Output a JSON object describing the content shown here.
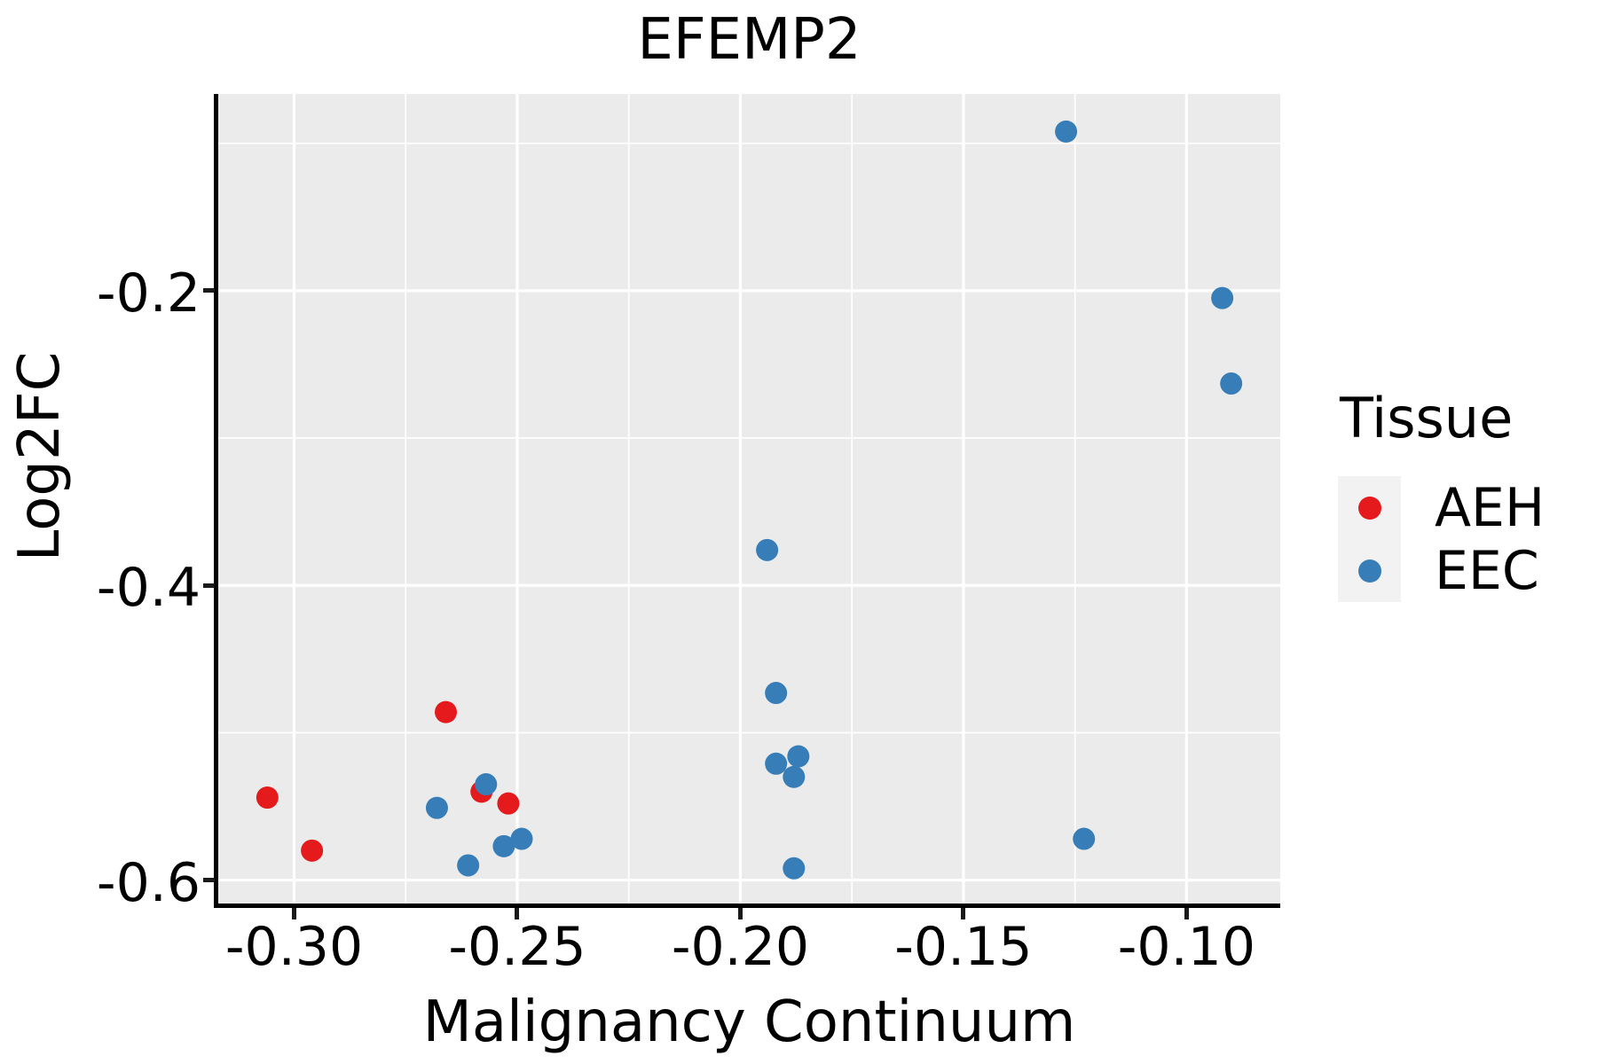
{
  "title": "EFEMP2",
  "legend": {
    "title": "Tissue",
    "entries": [
      {
        "label": "AEH",
        "color": "#E41A1C"
      },
      {
        "label": "EEC",
        "color": "#377EB8"
      }
    ]
  },
  "chart_data": {
    "type": "scatter",
    "title": "EFEMP2",
    "xlabel": "Malignancy Continuum",
    "ylabel": "Log2FC",
    "xlim": [
      -0.317,
      -0.079
    ],
    "ylim": [
      -0.6165,
      -0.0665
    ],
    "grid": true,
    "legend_position": "right",
    "x_ticks": {
      "values": [
        -0.3,
        -0.25,
        -0.2,
        -0.15,
        -0.1
      ],
      "labels": [
        "-0.30",
        "-0.25",
        "-0.20",
        "-0.15",
        "-0.10"
      ]
    },
    "y_ticks": {
      "values": [
        -0.2,
        -0.4,
        -0.6
      ],
      "labels": [
        "-0.2",
        "-0.4",
        "-0.6"
      ]
    },
    "x_minor_gridlines": [
      -0.275,
      -0.225,
      -0.175,
      -0.125
    ],
    "y_minor_gridlines": [
      -0.1,
      -0.3,
      -0.5
    ],
    "colors": {
      "panel_background": "#EBEBEB",
      "gridline": "#FFFFFF",
      "axis_line": "#000000",
      "AEH": "#E41A1C",
      "EEC": "#377EB8"
    },
    "series": [
      {
        "name": "AEH",
        "points": [
          [
            -0.306,
            -0.544
          ],
          [
            -0.296,
            -0.58
          ],
          [
            -0.266,
            -0.486
          ],
          [
            -0.258,
            -0.54
          ],
          [
            -0.252,
            -0.548
          ]
        ]
      },
      {
        "name": "EEC",
        "points": [
          [
            -0.268,
            -0.551
          ],
          [
            -0.257,
            -0.535
          ],
          [
            -0.261,
            -0.59
          ],
          [
            -0.253,
            -0.577
          ],
          [
            -0.249,
            -0.572
          ],
          [
            -0.194,
            -0.376
          ],
          [
            -0.192,
            -0.473
          ],
          [
            -0.192,
            -0.521
          ],
          [
            -0.187,
            -0.516
          ],
          [
            -0.188,
            -0.53
          ],
          [
            -0.188,
            -0.592
          ],
          [
            -0.123,
            -0.572
          ],
          [
            -0.127,
            -0.092
          ],
          [
            -0.092,
            -0.205
          ],
          [
            -0.09,
            -0.263
          ]
        ]
      }
    ]
  }
}
